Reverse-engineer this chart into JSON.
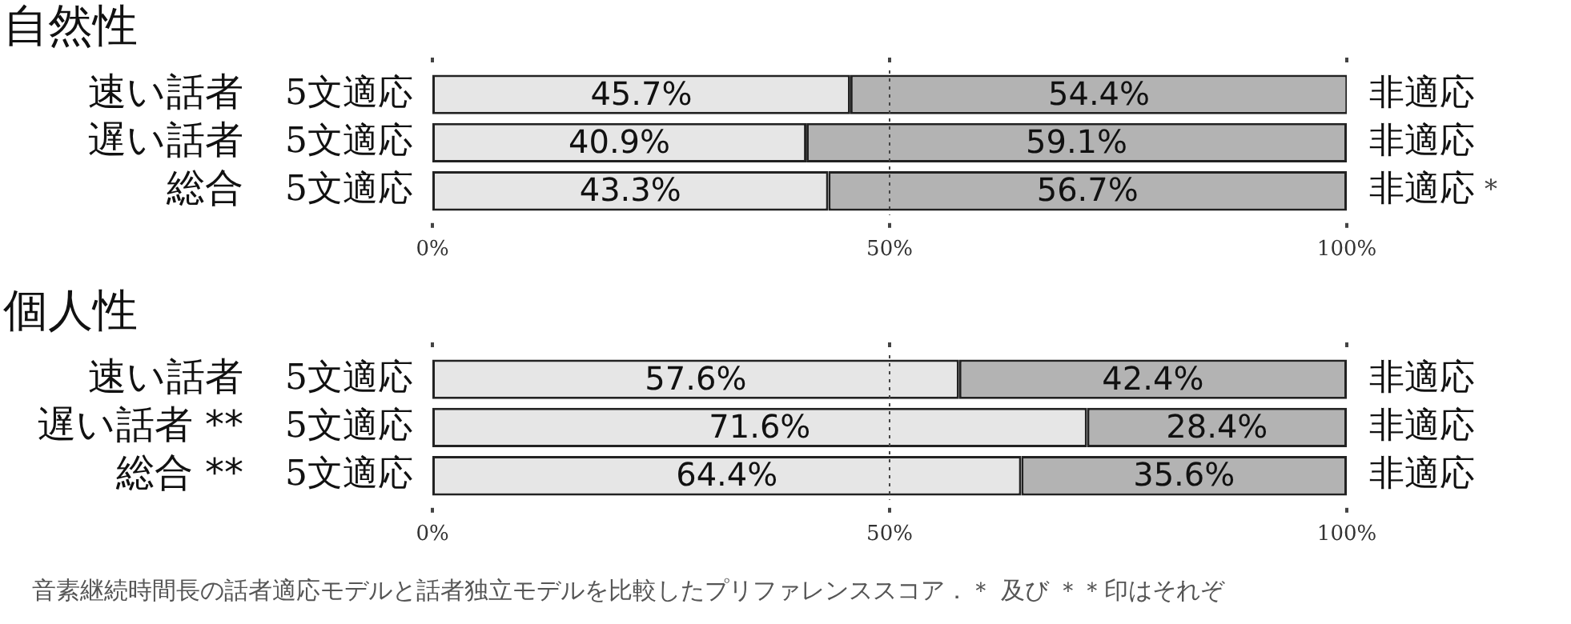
{
  "chart_data": [
    {
      "type": "bar",
      "orientation": "horizontal",
      "stacked": true,
      "title": "自然性",
      "categories": [
        "速い話者",
        "遅い話者",
        "総合"
      ],
      "series": [
        {
          "name": "5文適応",
          "color": "#e6e6e6",
          "values": [
            45.7,
            40.9,
            43.3
          ],
          "value_labels": [
            "45.7%",
            "40.9%",
            "43.3%"
          ]
        },
        {
          "name": "非適応",
          "color": "#b3b3b3",
          "values": [
            54.4,
            59.1,
            56.7
          ],
          "value_labels": [
            "54.4%",
            "59.1%",
            "56.7%"
          ]
        }
      ],
      "xlim": [
        0,
        100
      ],
      "xticks": [
        {
          "value": 0,
          "label": "0%"
        },
        {
          "value": 50,
          "label": "50%"
        },
        {
          "value": 100,
          "label": "100%"
        }
      ],
      "ref_lines": [
        {
          "axis": "x",
          "value": 50,
          "line_style": "dotted"
        }
      ],
      "annotations": [
        "*"
      ]
    },
    {
      "type": "bar",
      "orientation": "horizontal",
      "stacked": true,
      "title": "個人性",
      "categories": [
        "速い話者",
        "遅い話者 **",
        "総合 **"
      ],
      "series": [
        {
          "name": "5文適応",
          "color": "#e6e6e6",
          "values": [
            57.6,
            71.6,
            64.4
          ],
          "value_labels": [
            "57.6%",
            "71.6%",
            "64.4%"
          ]
        },
        {
          "name": "非適応",
          "color": "#b3b3b3",
          "values": [
            42.4,
            28.4,
            35.6
          ],
          "value_labels": [
            "42.4%",
            "28.4%",
            "35.6%"
          ]
        }
      ],
      "xlim": [
        0,
        100
      ],
      "xticks": [
        {
          "value": 0,
          "label": "0%"
        },
        {
          "value": 50,
          "label": "50%"
        },
        {
          "value": 100,
          "label": "100%"
        }
      ],
      "ref_lines": [
        {
          "axis": "x",
          "value": 50,
          "line_style": "dotted"
        }
      ],
      "annotations": [
        "音素継続時間長の話者適応モデルと話者独立モデルを比較したプリファレンススコア．＊ 及び ＊＊印はそれぞ"
      ]
    }
  ]
}
